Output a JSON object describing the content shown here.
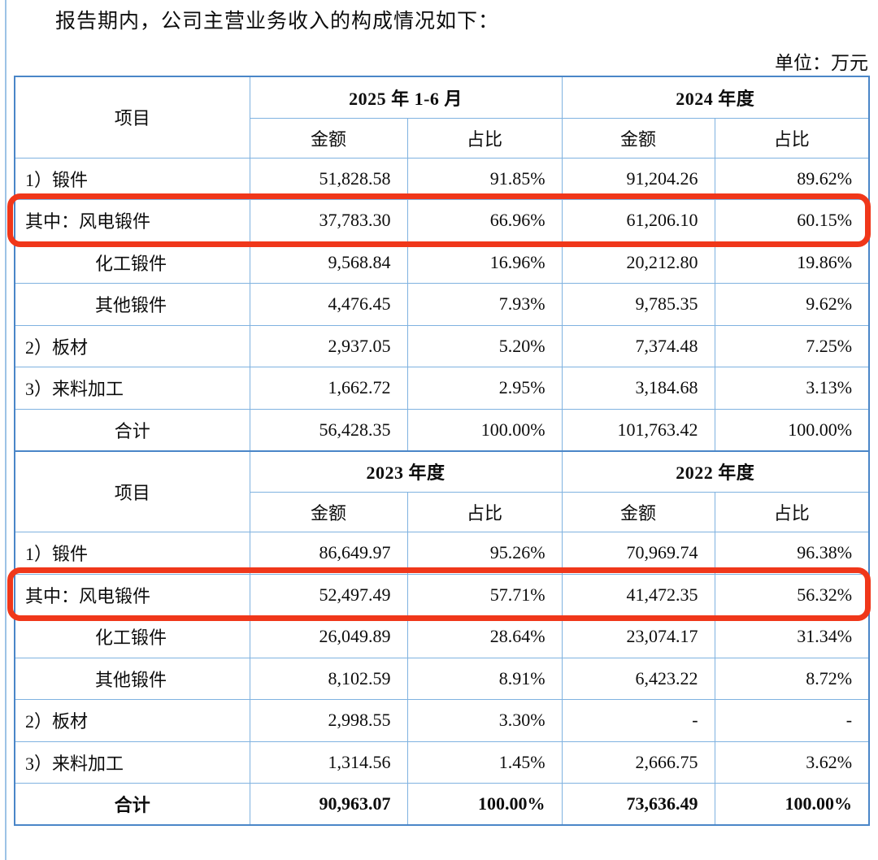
{
  "page": {
    "intro_text": "报告期内，公司主营业务收入的构成情况如下：",
    "unit_label": "单位：万元"
  },
  "colors": {
    "border_light": "#7fb2e0",
    "border_dark": "#4a86c8",
    "page_edge": "#9dc3e6",
    "highlight_red": "#f0371a",
    "text": "#0d0d0d"
  },
  "table": {
    "item_header": "项目",
    "sub_headers": [
      "金额",
      "占比"
    ],
    "sections": [
      {
        "period_headers": [
          "2025 年 1-6 月",
          "2024 年度"
        ],
        "rows": [
          {
            "label": "1）锻件",
            "style": "left",
            "highlight": false,
            "bold": false,
            "values": [
              "51,828.58",
              "91.85%",
              "91,204.26",
              "89.62%"
            ]
          },
          {
            "label": "其中：风电锻件",
            "style": "left",
            "highlight": true,
            "bold": false,
            "values": [
              "37,783.30",
              "66.96%",
              "61,206.10",
              "60.15%"
            ]
          },
          {
            "label": "化工锻件",
            "style": "indent",
            "highlight": false,
            "bold": false,
            "values": [
              "9,568.84",
              "16.96%",
              "20,212.80",
              "19.86%"
            ]
          },
          {
            "label": "其他锻件",
            "style": "indent",
            "highlight": false,
            "bold": false,
            "values": [
              "4,476.45",
              "7.93%",
              "9,785.35",
              "9.62%"
            ]
          },
          {
            "label": "2）板材",
            "style": "left",
            "highlight": false,
            "bold": false,
            "values": [
              "2,937.05",
              "5.20%",
              "7,374.48",
              "7.25%"
            ]
          },
          {
            "label": "3）来料加工",
            "style": "left",
            "highlight": false,
            "bold": false,
            "values": [
              "1,662.72",
              "2.95%",
              "3,184.68",
              "3.13%"
            ]
          },
          {
            "label": "合计",
            "style": "center",
            "highlight": false,
            "bold": false,
            "values": [
              "56,428.35",
              "100.00%",
              "101,763.42",
              "100.00%"
            ]
          }
        ]
      },
      {
        "period_headers": [
          "2023 年度",
          "2022 年度"
        ],
        "rows": [
          {
            "label": "1）锻件",
            "style": "left",
            "highlight": false,
            "bold": false,
            "values": [
              "86,649.97",
              "95.26%",
              "70,969.74",
              "96.38%"
            ]
          },
          {
            "label": "其中：风电锻件",
            "style": "left",
            "highlight": true,
            "bold": false,
            "values": [
              "52,497.49",
              "57.71%",
              "41,472.35",
              "56.32%"
            ]
          },
          {
            "label": "化工锻件",
            "style": "indent",
            "highlight": false,
            "bold": false,
            "values": [
              "26,049.89",
              "28.64%",
              "23,074.17",
              "31.34%"
            ]
          },
          {
            "label": "其他锻件",
            "style": "indent",
            "highlight": false,
            "bold": false,
            "values": [
              "8,102.59",
              "8.91%",
              "6,423.22",
              "8.72%"
            ]
          },
          {
            "label": "2）板材",
            "style": "left",
            "highlight": false,
            "bold": false,
            "values": [
              "2,998.55",
              "3.30%",
              "-",
              "-"
            ]
          },
          {
            "label": "3）来料加工",
            "style": "left",
            "highlight": false,
            "bold": false,
            "values": [
              "1,314.56",
              "1.45%",
              "2,666.75",
              "3.62%"
            ]
          },
          {
            "label": "合计",
            "style": "center",
            "highlight": false,
            "bold": true,
            "values": [
              "90,963.07",
              "100.00%",
              "73,636.49",
              "100.00%"
            ]
          }
        ]
      }
    ]
  }
}
